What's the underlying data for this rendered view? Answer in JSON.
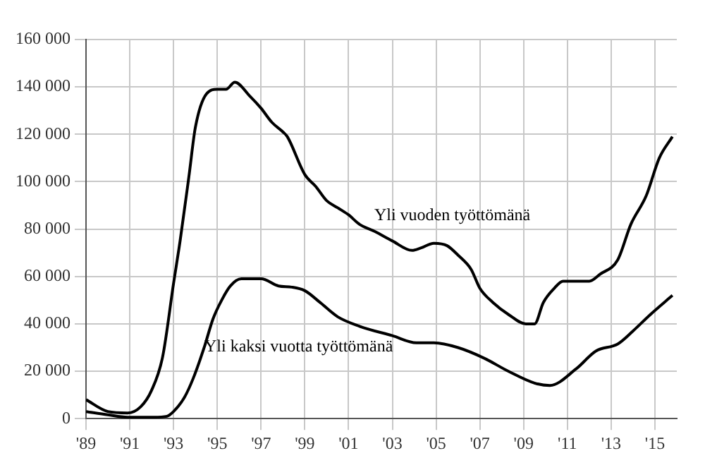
{
  "chart_data": {
    "type": "line",
    "xlim": [
      1989,
      2016
    ],
    "xticks": [
      {
        "value": 1989,
        "label": "'89"
      },
      {
        "value": 1991,
        "label": "'91"
      },
      {
        "value": 1993,
        "label": "'93"
      },
      {
        "value": 1995,
        "label": "'95"
      },
      {
        "value": 1997,
        "label": "'97"
      },
      {
        "value": 1999,
        "label": "'99"
      },
      {
        "value": 2001,
        "label": "'01"
      },
      {
        "value": 2003,
        "label": "'03"
      },
      {
        "value": 2005,
        "label": "'05"
      },
      {
        "value": 2007,
        "label": "'07"
      },
      {
        "value": 2009,
        "label": "'09"
      },
      {
        "value": 2011,
        "label": "'11"
      },
      {
        "value": 2013,
        "label": "'13"
      },
      {
        "value": 2015,
        "label": "'15"
      }
    ],
    "ylim": [
      0,
      160000
    ],
    "yticks": [
      0,
      {
        "value": 20000,
        "label": "20 000"
      },
      {
        "value": 40000,
        "label": "40 000"
      },
      {
        "value": 60000,
        "label": "60 000"
      },
      {
        "value": 80000,
        "label": "80 000"
      },
      {
        "value": 100000,
        "label": "100 000"
      },
      {
        "value": 120000,
        "label": "120 000"
      },
      {
        "value": 140000,
        "label": "140 000"
      },
      {
        "value": 160000,
        "label": "160 000"
      }
    ],
    "grid": true,
    "legend": false,
    "marker": "none",
    "line_style": "solid",
    "series": [
      {
        "name": "Yli vuoden työttömänä",
        "color": "#000000",
        "x": [
          1989,
          1990,
          1990.9,
          1991.5,
          1992,
          1992.5,
          1993,
          1993.3,
          1993.7,
          1994,
          1994.5,
          1995,
          1995.4,
          1995.8,
          1996.5,
          1997,
          1997.5,
          1998,
          1998.2,
          1999,
          1999.5,
          2000,
          2000.5,
          2001,
          2001.5,
          2002.2,
          2003,
          2003.9,
          2004.3,
          2004.9,
          2005.5,
          2006,
          2006.6,
          2007,
          2007.6,
          2008.3,
          2009.1,
          2009.5,
          2009.9,
          2010.4,
          2010.8,
          2011.4,
          2012,
          2012.5,
          2013.3,
          2013.9,
          2014.6,
          2015.2,
          2015.8
        ],
        "values": [
          8000,
          3000,
          2400,
          5000,
          12000,
          26000,
          57000,
          75000,
          102000,
          123000,
          137000,
          139000,
          139000,
          142000,
          136000,
          131000,
          125000,
          121000,
          119000,
          103000,
          98000,
          92000,
          89000,
          86000,
          82000,
          79000,
          75000,
          71000,
          72000,
          74000,
          73000,
          69000,
          63000,
          55000,
          49000,
          44000,
          40000,
          40000,
          49000,
          55000,
          58000,
          58000,
          58000,
          61000,
          67000,
          82000,
          94000,
          110000,
          119000
        ]
      },
      {
        "name": "Yli kaksi vuotta työttömänä",
        "color": "#000000",
        "x": [
          1989,
          1990,
          1990.9,
          1992.1,
          1992.7,
          1993,
          1993.5,
          1993.9,
          1994.4,
          1994.8,
          1995.2,
          1995.6,
          1996.1,
          1997,
          1997.8,
          1998.4,
          1999,
          1999.7,
          2000.5,
          2001.5,
          2003,
          2004.1,
          2004.9,
          2006,
          2007.2,
          2008.3,
          2009.5,
          2010.2,
          2011.4,
          2012.3,
          2013.3,
          2014,
          2014.8,
          2015.8
        ],
        "values": [
          3000,
          1600,
          600,
          600,
          1000,
          3000,
          9000,
          17000,
          30000,
          42000,
          50000,
          56000,
          59000,
          59000,
          56000,
          55500,
          54000,
          49000,
          43000,
          39000,
          35000,
          32000,
          32000,
          30000,
          25500,
          20000,
          15000,
          14000,
          21000,
          28500,
          31500,
          37000,
          44000,
          52000
        ]
      }
    ]
  }
}
